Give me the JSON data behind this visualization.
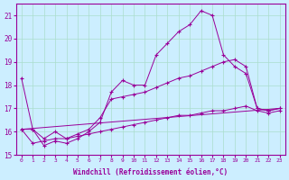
{
  "xlabel": "Windchill (Refroidissement éolien,°C)",
  "bg_color": "#cceeff",
  "grid_color": "#aaddcc",
  "line_color": "#990099",
  "xlim": [
    -0.5,
    23.5
  ],
  "ylim": [
    15,
    21.5
  ],
  "yticks": [
    15,
    16,
    17,
    18,
    19,
    20,
    21
  ],
  "xticks": [
    0,
    1,
    2,
    3,
    4,
    5,
    6,
    7,
    8,
    9,
    10,
    11,
    12,
    13,
    14,
    15,
    16,
    17,
    18,
    19,
    20,
    21,
    22,
    23
  ],
  "line1_x": [
    0,
    1,
    2,
    3,
    4,
    5,
    6,
    7,
    8,
    9,
    10,
    11,
    12,
    13,
    14,
    15,
    16,
    17,
    18,
    19,
    20,
    21,
    22,
    23
  ],
  "line1_y": [
    18.3,
    16.1,
    15.4,
    15.6,
    15.5,
    15.7,
    16.0,
    16.4,
    17.7,
    18.2,
    18.0,
    18.0,
    19.3,
    19.8,
    20.3,
    20.6,
    21.2,
    21.0,
    19.3,
    18.8,
    18.5,
    17.0,
    16.9,
    17.0
  ],
  "line2_x": [
    0,
    1,
    2,
    3,
    4,
    5,
    6,
    7,
    8,
    9,
    10,
    11,
    12,
    13,
    14,
    15,
    16,
    17,
    18,
    19,
    20,
    21,
    22,
    23
  ],
  "line2_y": [
    16.1,
    16.1,
    15.7,
    16.0,
    15.7,
    15.9,
    16.1,
    16.6,
    17.4,
    17.5,
    17.6,
    17.7,
    17.9,
    18.1,
    18.3,
    18.4,
    18.6,
    18.8,
    19.0,
    19.1,
    18.8,
    17.0,
    16.9,
    17.0
  ],
  "line3_x": [
    0,
    23
  ],
  "line3_y": [
    16.1,
    17.0
  ],
  "line4_x": [
    0,
    1,
    2,
    3,
    4,
    5,
    6,
    7,
    8,
    9,
    10,
    11,
    12,
    13,
    14,
    15,
    16,
    17,
    18,
    19,
    20,
    21,
    22,
    23
  ],
  "line4_y": [
    16.1,
    15.5,
    15.6,
    15.7,
    15.7,
    15.8,
    15.9,
    16.0,
    16.1,
    16.2,
    16.3,
    16.4,
    16.5,
    16.6,
    16.7,
    16.7,
    16.8,
    16.9,
    16.9,
    17.0,
    17.1,
    16.9,
    16.8,
    16.9
  ]
}
